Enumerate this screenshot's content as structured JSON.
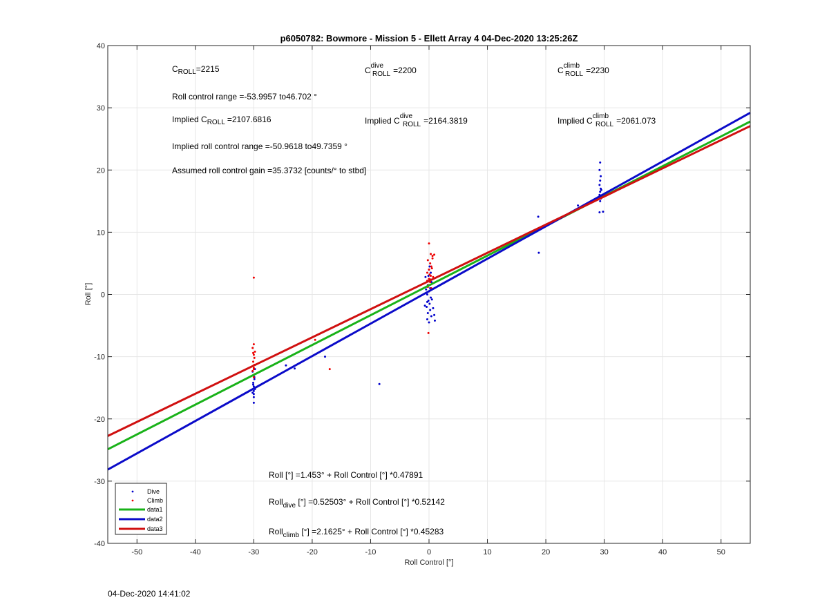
{
  "title": "p6050782: Bowmore - Mission 5 - Ellett Array 4 04-Dec-2020 13:25:26Z",
  "timestamp": "04-Dec-2020 14:41:02",
  "annotations": {
    "c_roll": {
      "base": "C",
      "sub": "ROLL",
      "value": "=2215"
    },
    "c_roll_dive": {
      "base": "C",
      "sup": "dive",
      "sub": "ROLL",
      "value": "=2200"
    },
    "c_roll_climb": {
      "base": "C",
      "sup": "climb",
      "sub": "ROLL",
      "value": "=2230"
    },
    "roll_control_range": "Roll control range =-53.9957 to46.702 °",
    "implied_c_roll": {
      "prefix": "Implied C",
      "sub": "ROLL",
      "value": "=2107.6816"
    },
    "implied_c_roll_dive": {
      "prefix": "Implied C",
      "sup": "dive",
      "sub": "ROLL",
      "value": "=2164.3819"
    },
    "implied_c_roll_climb": {
      "prefix": "Implied C",
      "sup": "climb",
      "sub": "ROLL",
      "value": "=2061.073"
    },
    "implied_range": "Implied roll control range =-50.9618 to49.7359 °",
    "assumed_gain": "Assumed roll control gain =35.3732 [counts/° to stbd]",
    "fit_all": "Roll [°] =1.453° + Roll Control [°] *0.47891",
    "fit_dive": {
      "base": "Roll",
      "sub": "dive",
      "rest": " [°] =0.52503° + Roll Control [°] *0.52142"
    },
    "fit_climb": {
      "base": "Roll",
      "sub": "climb",
      "rest": " [°] =2.1625° + Roll Control [°] *0.45283"
    }
  },
  "colors": {
    "dive": "#0000cc",
    "climb": "#ee0000",
    "data1": "#19b219",
    "data2": "#0b0bc9",
    "data3": "#d01010"
  },
  "chart_data": {
    "type": "scatter",
    "title": "p6050782: Bowmore - Mission 5 - Ellett Array 4 04-Dec-2020 13:25:26Z",
    "xlabel": "Roll Control [°]",
    "ylabel": "Roll [°]",
    "xlim": [
      -55,
      55
    ],
    "ylim": [
      -40,
      40
    ],
    "xticks": [
      -50,
      -40,
      -30,
      -20,
      -10,
      0,
      10,
      20,
      30,
      40,
      50
    ],
    "yticks": [
      -40,
      -30,
      -20,
      -10,
      0,
      10,
      20,
      30,
      40
    ],
    "grid": true,
    "legend_position": "bottom-left",
    "scatter_series": [
      {
        "name": "Dive",
        "color": "#0000cc",
        "points": [
          [
            -30,
            -17.4
          ],
          [
            -30,
            -16.5
          ],
          [
            -30.2,
            -15.8
          ],
          [
            -29.8,
            -15.2
          ],
          [
            -30,
            -14.8
          ],
          [
            -30.1,
            -14.2
          ],
          [
            -29.9,
            -13.6
          ],
          [
            -30,
            -13
          ],
          [
            -30.2,
            -12.4
          ],
          [
            -29.8,
            -12
          ],
          [
            -30,
            -15.5
          ],
          [
            -30.1,
            -14.5
          ],
          [
            -29.9,
            -13.3
          ],
          [
            -30,
            -16
          ],
          [
            -23,
            -11.9
          ],
          [
            -24.5,
            -11.4
          ],
          [
            -17.8,
            -10
          ],
          [
            -8.5,
            -14.4
          ],
          [
            0,
            -4.5
          ],
          [
            -0.3,
            -4
          ],
          [
            0.4,
            -3.5
          ],
          [
            -0.2,
            -3
          ],
          [
            0.2,
            -2.5
          ],
          [
            -0.4,
            -2
          ],
          [
            0.1,
            -1.5
          ],
          [
            -0.1,
            -1
          ],
          [
            0.3,
            -0.5
          ],
          [
            -0.3,
            0
          ],
          [
            0,
            0.5
          ],
          [
            0.2,
            1
          ],
          [
            -0.2,
            1.5
          ],
          [
            0.4,
            2
          ],
          [
            0,
            2.5
          ],
          [
            -0.1,
            3
          ],
          [
            0.3,
            3.5
          ],
          [
            0,
            4
          ],
          [
            0.1,
            4.5
          ],
          [
            -0.3,
            -1.2
          ],
          [
            0.5,
            -0.8
          ],
          [
            -0.5,
            0.8
          ],
          [
            0.6,
            1.8
          ],
          [
            -0.6,
            2.8
          ],
          [
            0.7,
            -2.2
          ],
          [
            0.9,
            -3.3
          ],
          [
            1,
            -4.2
          ],
          [
            -0.7,
            -1.8
          ],
          [
            18.7,
            12.5
          ],
          [
            18.8,
            6.7
          ],
          [
            25.5,
            14.3
          ],
          [
            29.3,
            21.2
          ],
          [
            29.2,
            20
          ],
          [
            29.4,
            19
          ],
          [
            29.3,
            18.3
          ],
          [
            29.2,
            17.6
          ],
          [
            29.4,
            17
          ],
          [
            29.3,
            16.5
          ],
          [
            29.2,
            16
          ],
          [
            29.4,
            15.4
          ],
          [
            29.3,
            15
          ],
          [
            29.2,
            13.2
          ],
          [
            29.8,
            13.3
          ],
          [
            29.5,
            16.8
          ],
          [
            29.6,
            15.8
          ]
        ]
      },
      {
        "name": "Climb",
        "color": "#ee0000",
        "points": [
          [
            -30,
            2.7
          ],
          [
            -30,
            -8
          ],
          [
            -30.2,
            -8.6
          ],
          [
            -29.8,
            -9.2
          ],
          [
            -30,
            -9.7
          ],
          [
            -30.1,
            -10.8
          ],
          [
            -29.9,
            -11.3
          ],
          [
            -30,
            -11.8
          ],
          [
            -30.2,
            -12.3
          ],
          [
            -29.8,
            -12.8
          ],
          [
            -30,
            -13.3
          ],
          [
            -30.1,
            -9.4
          ],
          [
            -29.9,
            -10.2
          ],
          [
            -30,
            -12
          ],
          [
            -19.5,
            -7.3
          ],
          [
            -17,
            -12
          ],
          [
            0,
            8.2
          ],
          [
            0.3,
            6.5
          ],
          [
            0.6,
            6.2
          ],
          [
            -0.2,
            5.5
          ],
          [
            0.2,
            5
          ],
          [
            0.4,
            4.5
          ],
          [
            0,
            4
          ],
          [
            -0.3,
            3.5
          ],
          [
            0.3,
            3
          ],
          [
            0,
            2.5
          ],
          [
            0.2,
            2
          ],
          [
            -0.1,
            1.5
          ],
          [
            0.4,
            1
          ],
          [
            0,
            0.5
          ],
          [
            0.1,
            3.2
          ],
          [
            -0.3,
            2.2
          ],
          [
            0.5,
            4.2
          ],
          [
            -0.2,
            1.2
          ],
          [
            0.7,
            2.8
          ],
          [
            0.9,
            6.4
          ],
          [
            -0.1,
            -6.2
          ],
          [
            0.6,
            5.8
          ],
          [
            0.3,
            2.4
          ]
        ]
      }
    ],
    "lines": [
      {
        "name": "data1",
        "color": "#19b219",
        "intercept": 1.453,
        "slope": 0.47891
      },
      {
        "name": "data2",
        "color": "#0b0bc9",
        "intercept": 0.52503,
        "slope": 0.52142
      },
      {
        "name": "data3",
        "color": "#d01010",
        "intercept": 2.1625,
        "slope": 0.45283
      }
    ]
  }
}
